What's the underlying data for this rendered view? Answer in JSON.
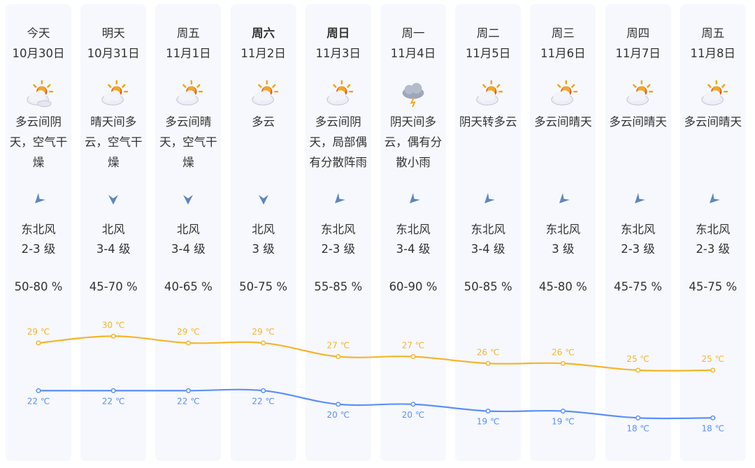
{
  "days": [
    {
      "day": "今天",
      "date": "10月30日",
      "icon": "partly-cloudy-overcast",
      "desc": "多云间阴\n天，空气干\n燥",
      "wind_icon": "wind-arrow-northeast",
      "wind": "东北风",
      "level": "2-3 级",
      "humidity": "50-80 %",
      "high": "29 ℃",
      "low": "22 ℃",
      "bold": false
    },
    {
      "day": "明天",
      "date": "10月31日",
      "icon": "sunny-cloudy",
      "desc": "晴天间多\n云，空气干\n燥",
      "wind_icon": "wind-arrow-north",
      "wind": "北风",
      "level": "3-4 级",
      "humidity": "45-70 %",
      "high": "30 ℃",
      "low": "22 ℃",
      "bold": false
    },
    {
      "day": "周五",
      "date": "11月1日",
      "icon": "sunny-cloudy",
      "desc": "多云间晴\n天，空气干\n燥",
      "wind_icon": "wind-arrow-north",
      "wind": "北风",
      "level": "3-4 级",
      "humidity": "40-65 %",
      "high": "29 ℃",
      "low": "22 ℃",
      "bold": false
    },
    {
      "day": "周六",
      "date": "11月2日",
      "icon": "partly-cloudy",
      "desc": "多云",
      "wind_icon": "wind-arrow-north",
      "wind": "北风",
      "level": "3 级",
      "humidity": "50-75 %",
      "high": "29 ℃",
      "low": "22 ℃",
      "bold": true
    },
    {
      "day": "周日",
      "date": "11月3日",
      "icon": "partly-cloudy",
      "desc": "多云间阴\n天，局部偶\n有分散阵雨",
      "wind_icon": "wind-arrow-northeast",
      "wind": "东北风",
      "level": "2-3 级",
      "humidity": "55-85 %",
      "high": "27 ℃",
      "low": "20 ℃",
      "bold": true
    },
    {
      "day": "周一",
      "date": "11月4日",
      "icon": "rain-cloud",
      "desc": "阴天间多\n云，偶有分\n散小雨",
      "wind_icon": "wind-arrow-northeast",
      "wind": "东北风",
      "level": "3-4 级",
      "humidity": "60-90 %",
      "high": "27 ℃",
      "low": "20 ℃",
      "bold": false
    },
    {
      "day": "周二",
      "date": "11月5日",
      "icon": "partly-cloudy",
      "desc": "阴天转多云",
      "wind_icon": "wind-arrow-northeast",
      "wind": "东北风",
      "level": "3-4 级",
      "humidity": "50-85 %",
      "high": "26 ℃",
      "low": "19 ℃",
      "bold": false
    },
    {
      "day": "周三",
      "date": "11月6日",
      "icon": "partly-cloudy",
      "desc": "多云间晴天",
      "wind_icon": "wind-arrow-northeast",
      "wind": "东北风",
      "level": "3 级",
      "humidity": "45-80 %",
      "high": "26 ℃",
      "low": "19 ℃",
      "bold": false
    },
    {
      "day": "周四",
      "date": "11月7日",
      "icon": "partly-cloudy",
      "desc": "多云间晴天",
      "wind_icon": "wind-arrow-northeast",
      "wind": "东北风",
      "level": "2-3 级",
      "humidity": "45-75 %",
      "high": "25 ℃",
      "low": "18 ℃",
      "bold": false
    },
    {
      "day": "周五",
      "date": "11月8日",
      "icon": "partly-cloudy",
      "desc": "多云间晴天",
      "wind_icon": "wind-arrow-northeast",
      "wind": "东北风",
      "level": "2-3 级",
      "humidity": "45-75 %",
      "high": "25 ℃",
      "low": "18 ℃",
      "bold": false
    }
  ],
  "chart_data": {
    "type": "line",
    "categories": [
      "10月30日",
      "10月31日",
      "11月1日",
      "11月2日",
      "11月3日",
      "11月4日",
      "11月5日",
      "11月6日",
      "11月7日",
      "11月8日"
    ],
    "series": [
      {
        "values": [
          29,
          30,
          29,
          29,
          27,
          27,
          26,
          26,
          25,
          25
        ],
        "color": "#f5b52a"
      },
      {
        "values": [
          22,
          22,
          22,
          22,
          20,
          20,
          19,
          19,
          18,
          18
        ],
        "color": "#5b8ff9"
      }
    ],
    "unit": "℃"
  },
  "colors": {
    "column_bg": "#f6f8fe",
    "high": "#f5b52a",
    "low": "#5b8ff9",
    "wind_arrow": "#5b88bf"
  }
}
